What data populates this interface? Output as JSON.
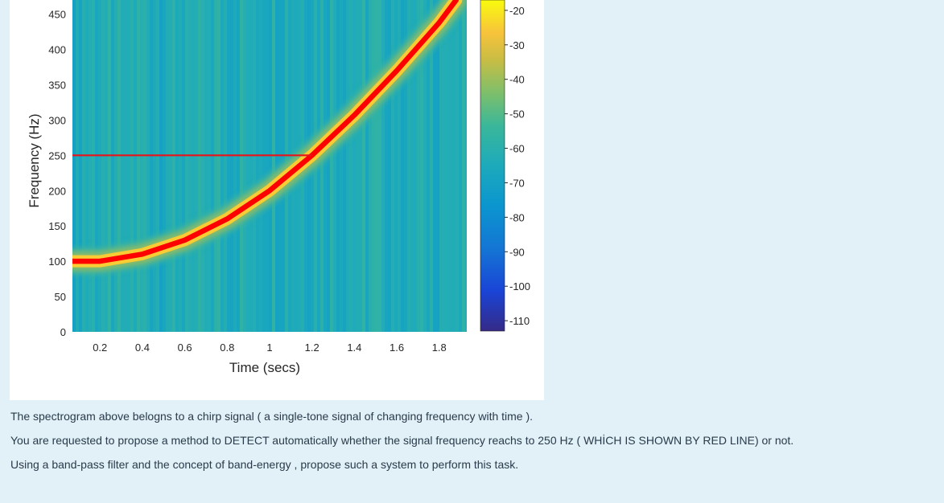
{
  "chart_data": {
    "type": "heatmap",
    "xlabel": "Time (secs)",
    "ylabel": "Frequency (Hz)",
    "xlim": [
      0.07,
      1.93
    ],
    "ylim": [
      0,
      470
    ],
    "x_ticks": [
      0.2,
      0.4,
      0.6,
      0.8,
      1,
      1.2,
      1.4,
      1.6,
      1.8
    ],
    "x_tick_labels": [
      "0.2",
      "0.4",
      "0.6",
      "0.8",
      "1",
      "1.2",
      "1.4",
      "1.6",
      "1.8"
    ],
    "y_ticks": [
      0,
      50,
      100,
      150,
      200,
      250,
      300,
      350,
      400,
      450
    ],
    "y_tick_labels": [
      "0",
      "50",
      "100",
      "150",
      "200",
      "250",
      "300",
      "350",
      "400",
      "450"
    ],
    "colorbar": {
      "colormap": "parula",
      "ticks": [
        -20,
        -30,
        -40,
        -50,
        -60,
        -70,
        -80,
        -90,
        -100,
        -110
      ],
      "tick_labels": [
        "-20",
        "-30",
        "-40",
        "-50",
        "-60",
        "-70",
        "-80",
        "-90",
        "-100",
        "-110"
      ],
      "range": [
        -113,
        -17
      ]
    },
    "background_level_db": -62,
    "chirp_ridge": {
      "color": "#ff0000",
      "points": [
        {
          "t": 0.07,
          "f": 100
        },
        {
          "t": 0.2,
          "f": 100
        },
        {
          "t": 0.4,
          "f": 110
        },
        {
          "t": 0.6,
          "f": 130
        },
        {
          "t": 0.8,
          "f": 160
        },
        {
          "t": 1.0,
          "f": 200
        },
        {
          "t": 1.2,
          "f": 250
        },
        {
          "t": 1.4,
          "f": 307
        },
        {
          "t": 1.6,
          "f": 370
        },
        {
          "t": 1.8,
          "f": 438
        },
        {
          "t": 1.88,
          "f": 470
        }
      ]
    },
    "threshold_line": {
      "frequency": 250,
      "t_start": 0.07,
      "t_end": 1.2,
      "color": "#e8141a"
    }
  },
  "question": {
    "line1": "The spectrogram above belogns to a chirp signal ( a single-tone signal of changing frequency with time ).",
    "line2": "You are requested to propose a method to DETECT automatically  whether the signal frequency reachs to 250 Hz ( WHİCH IS SHOWN BY RED LINE) or not.",
    "line3": "Using a band-pass filter and the concept of band-energy , propose such a system to perform this task."
  }
}
